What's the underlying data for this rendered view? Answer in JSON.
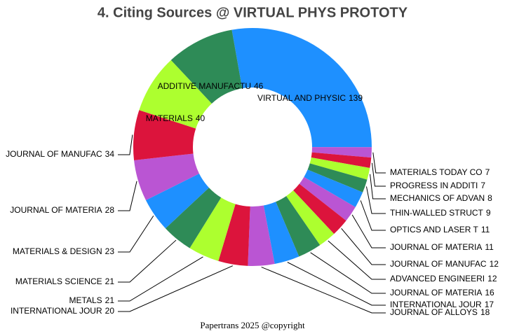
{
  "chart_data": {
    "type": "donut",
    "title": "4. Citing Sources @ VIRTUAL PHYS PROTOTY",
    "footer": "Papertrans 2025 @copyright",
    "categories": [
      "VIRTUAL AND PHYSIC",
      "MATERIALS TODAY CO",
      "PROGRESS IN ADDITI",
      "MECHANICS OF ADVAN",
      "THIN-WALLED STRUCT",
      "OPTICS AND LASER T",
      "JOURNAL OF MATERIA",
      "JOURNAL OF MANUFAC",
      "ADVANCED ENGINEERI",
      "JOURNAL OF MATERIA",
      "INTERNATIONAL JOUR",
      "JOURNAL OF ALLOYS",
      "INTERNATIONAL JOUR",
      "METALS",
      "MATERIALS SCIENCE",
      "MATERIALS & DESIGN",
      "JOURNAL OF MATERIA",
      "JOURNAL OF MANUFAC",
      "MATERIALS",
      "ADDITIVE MANUFACTU"
    ],
    "values": [
      139,
      7,
      7,
      8,
      9,
      11,
      11,
      12,
      12,
      16,
      17,
      18,
      20,
      21,
      21,
      23,
      28,
      34,
      40,
      46
    ],
    "colors": [
      "#1e90ff",
      "#ba55d3",
      "#dc143c",
      "#adff2f",
      "#2e8b57"
    ]
  }
}
